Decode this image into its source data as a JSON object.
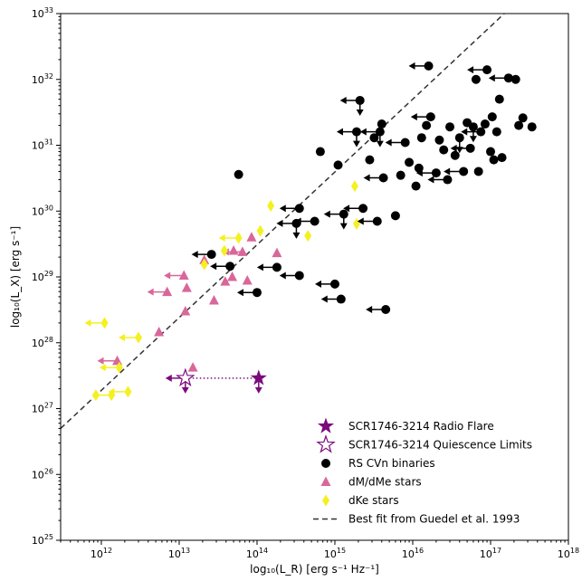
{
  "chart_data": {
    "type": "scatter",
    "title": "",
    "xlabel": "log₁₀(L_R) [erg s⁻¹ Hz⁻¹]",
    "ylabel": "log₁₀(L_X) [erg s⁻¹]",
    "xscale": "log",
    "yscale": "log",
    "xlim": [
      300000000000.0,
      1e+18
    ],
    "ylim": [
      1e+25,
      1e+33
    ],
    "x_ticks": [
      "10^12",
      "10^13",
      "10^14",
      "10^15",
      "10^16",
      "10^17",
      "10^18"
    ],
    "y_ticks": [
      "10^25",
      "10^26",
      "10^27",
      "10^28",
      "10^29",
      "10^30",
      "10^31",
      "10^32",
      "10^33"
    ],
    "legend_position": "bottom-right",
    "colors": {
      "flare": "#7b0a7b",
      "rscvn": "#000000",
      "dme": "#d8679a",
      "dke": "#f5f020",
      "fit": "#333333"
    },
    "series": [
      {
        "name": "SCR1746-3214 Radio Flare",
        "marker": "star-filled",
        "points": [
          {
            "x": 105000000000000.0,
            "y": 2.9e+27,
            "upper_limit_y": true
          }
        ]
      },
      {
        "name": "SCR1746-3214 Quiescence Limits",
        "marker": "star-open",
        "points": [
          {
            "x": 12000000000000.0,
            "y": 2.9e+27,
            "upper_limit_x": true,
            "upper_limit_y": true
          }
        ]
      },
      {
        "name": "RS CVn binaries",
        "marker": "circle",
        "points": [
          {
            "x": 26000000000000.0,
            "y": 2.2e+29,
            "upper_limit_x": true
          },
          {
            "x": 45000000000000.0,
            "y": 1.45e+29,
            "upper_limit_x": true
          },
          {
            "x": 100000000000000.0,
            "y": 5.8e+28,
            "upper_limit_x": true
          },
          {
            "x": 180000000000000.0,
            "y": 1.4e+29,
            "upper_limit_x": true
          },
          {
            "x": 350000000000000.0,
            "y": 1.05e+29,
            "upper_limit_x": true
          },
          {
            "x": 1000000000000000.0,
            "y": 7.8e+28,
            "upper_limit_x": true
          },
          {
            "x": 1200000000000000.0,
            "y": 4.6e+28,
            "upper_limit_x": true
          },
          {
            "x": 58000000000000.0,
            "y": 3.6e+30
          },
          {
            "x": 350000000000000.0,
            "y": 1.1e+30,
            "upper_limit_x": true
          },
          {
            "x": 320000000000000.0,
            "y": 6.5e+29,
            "upper_limit_x": true,
            "upper_limit_y": true
          },
          {
            "x": 550000000000000.0,
            "y": 7e+29,
            "upper_limit_x": true
          },
          {
            "x": 650000000000000.0,
            "y": 8e+30
          },
          {
            "x": 1100000000000000.0,
            "y": 5e+30
          },
          {
            "x": 1300000000000000.0,
            "y": 9e+29,
            "upper_limit_x": true,
            "upper_limit_y": true
          },
          {
            "x": 1900000000000000.0,
            "y": 1.6e+31,
            "upper_limit_x": true,
            "upper_limit_y": true
          },
          {
            "x": 2100000000000000.0,
            "y": 4.8e+31,
            "upper_limit_x": true,
            "upper_limit_y": true
          },
          {
            "x": 2300000000000000.0,
            "y": 1.1e+30,
            "upper_limit_x": true
          },
          {
            "x": 2800000000000000.0,
            "y": 6e+30
          },
          {
            "x": 3200000000000000.0,
            "y": 1.3e+31
          },
          {
            "x": 3500000000000000.0,
            "y": 7e+29,
            "upper_limit_x": true
          },
          {
            "x": 3800000000000000.0,
            "y": 1.6e+31,
            "upper_limit_x": true,
            "upper_limit_y": true
          },
          {
            "x": 4000000000000000.0,
            "y": 2.1e+31
          },
          {
            "x": 4200000000000000.0,
            "y": 3.2e+30,
            "upper_limit_x": true
          },
          {
            "x": 4500000000000000.0,
            "y": 3.2e+28,
            "upper_limit_x": true
          },
          {
            "x": 6000000000000000.0,
            "y": 8.5e+29
          },
          {
            "x": 7000000000000000.0,
            "y": 3.5e+30
          },
          {
            "x": 8000000000000000.0,
            "y": 1.1e+31,
            "upper_limit_x": true
          },
          {
            "x": 9000000000000000.0,
            "y": 5.5e+30
          },
          {
            "x": 1.1e+16,
            "y": 2.4e+30
          },
          {
            "x": 1.2e+16,
            "y": 4.5e+30
          },
          {
            "x": 1.3e+16,
            "y": 1.3e+31
          },
          {
            "x": 1.5e+16,
            "y": 2e+31
          },
          {
            "x": 1.6e+16,
            "y": 1.6e+32,
            "upper_limit_x": true
          },
          {
            "x": 1.7e+16,
            "y": 2.7e+31,
            "upper_limit_x": true
          },
          {
            "x": 2e+16,
            "y": 3.8e+30,
            "upper_limit_x": true
          },
          {
            "x": 2.2e+16,
            "y": 1.2e+31
          },
          {
            "x": 2.5e+16,
            "y": 8.5e+30
          },
          {
            "x": 2.8e+16,
            "y": 3e+30,
            "upper_limit_x": true
          },
          {
            "x": 3e+16,
            "y": 1.9e+31
          },
          {
            "x": 3.5e+16,
            "y": 7e+30
          },
          {
            "x": 4e+16,
            "y": 1.3e+31,
            "upper_limit_y": true
          },
          {
            "x": 4.5e+16,
            "y": 4e+30,
            "upper_limit_x": true
          },
          {
            "x": 5e+16,
            "y": 2.2e+31
          },
          {
            "x": 5.5e+16,
            "y": 9e+30,
            "upper_limit_x": true
          },
          {
            "x": 6e+16,
            "y": 1.9e+31,
            "upper_limit_y": true
          },
          {
            "x": 6.5e+16,
            "y": 1e+32
          },
          {
            "x": 7e+16,
            "y": 4e+30
          },
          {
            "x": 7.5e+16,
            "y": 1.6e+31,
            "upper_limit_x": true
          },
          {
            "x": 8.5e+16,
            "y": 2.1e+31
          },
          {
            "x": 9e+16,
            "y": 1.4e+32,
            "upper_limit_x": true
          },
          {
            "x": 1e+17,
            "y": 8e+30
          },
          {
            "x": 1.05e+17,
            "y": 2.7e+31
          },
          {
            "x": 1.1e+17,
            "y": 6e+30
          },
          {
            "x": 1.2e+17,
            "y": 1.6e+31
          },
          {
            "x": 1.3e+17,
            "y": 5e+31
          },
          {
            "x": 1.4e+17,
            "y": 6.5e+30
          },
          {
            "x": 1.7e+17,
            "y": 1.05e+32,
            "upper_limit_x": true
          },
          {
            "x": 2.1e+17,
            "y": 1e+32
          },
          {
            "x": 2.3e+17,
            "y": 2e+31
          },
          {
            "x": 2.6e+17,
            "y": 2.6e+31
          },
          {
            "x": 3.4e+17,
            "y": 1.9e+31
          }
        ]
      },
      {
        "name": "dM/dMe stars",
        "marker": "triangle",
        "points": [
          {
            "x": 1600000000000.0,
            "y": 5.3e+27,
            "upper_limit_x": true
          },
          {
            "x": 5500000000000.0,
            "y": 1.45e+28
          },
          {
            "x": 7000000000000.0,
            "y": 5.9e+28,
            "upper_limit_x": true
          },
          {
            "x": 11500000000000.0,
            "y": 1.05e+29,
            "upper_limit_x": true
          },
          {
            "x": 12000000000000.0,
            "y": 3e+28
          },
          {
            "x": 12500000000000.0,
            "y": 6.8e+28
          },
          {
            "x": 15000000000000.0,
            "y": 4.2e+27
          },
          {
            "x": 21000000000000.0,
            "y": 1.8e+29
          },
          {
            "x": 28000000000000.0,
            "y": 4.4e+28
          },
          {
            "x": 39000000000000.0,
            "y": 8.5e+28
          },
          {
            "x": 48000000000000.0,
            "y": 1e+29
          },
          {
            "x": 50000000000000.0,
            "y": 2.5e+29
          },
          {
            "x": 65000000000000.0,
            "y": 2.4e+29,
            "upper_limit_x": true
          },
          {
            "x": 75000000000000.0,
            "y": 8.8e+28
          },
          {
            "x": 85000000000000.0,
            "y": 4e+29
          },
          {
            "x": 180000000000000.0,
            "y": 2.3e+29
          }
        ]
      },
      {
        "name": "dKe stars",
        "marker": "diamond",
        "points": [
          {
            "x": 850000000000.0,
            "y": 1.6e+27
          },
          {
            "x": 1100000000000.0,
            "y": 2e+28,
            "upper_limit_x": true
          },
          {
            "x": 1350000000000.0,
            "y": 1.6e+27,
            "upper_limit_x": true
          },
          {
            "x": 1700000000000.0,
            "y": 4.2e+27,
            "upper_limit_x": true
          },
          {
            "x": 2200000000000.0,
            "y": 1.8e+27,
            "upper_limit_x": true
          },
          {
            "x": 3000000000000.0,
            "y": 1.2e+28,
            "upper_limit_x": true
          },
          {
            "x": 21000000000000.0,
            "y": 1.55e+29
          },
          {
            "x": 38000000000000.0,
            "y": 2.5e+29
          },
          {
            "x": 58000000000000.0,
            "y": 3.9e+29,
            "upper_limit_x": true
          },
          {
            "x": 110000000000000.0,
            "y": 5e+29
          },
          {
            "x": 150000000000000.0,
            "y": 1.2e+30
          },
          {
            "x": 450000000000000.0,
            "y": 4.2e+29
          },
          {
            "x": 1800000000000000.0,
            "y": 2.4e+30
          },
          {
            "x": 1900000000000000.0,
            "y": 6.4e+29
          }
        ]
      },
      {
        "name": "Best fit from Guedel et al. 1993",
        "marker": "dashed-line",
        "line": [
          {
            "x": 300000000000.0,
            "y": 5e+26
          },
          {
            "x": 1.5e+17,
            "y": 1e+33
          }
        ]
      }
    ],
    "annotations": [
      {
        "type": "dotted-connector",
        "from": {
          "x": 12000000000000.0,
          "y": 2.9e+27
        },
        "to": {
          "x": 105000000000000.0,
          "y": 2.9e+27
        }
      }
    ]
  }
}
